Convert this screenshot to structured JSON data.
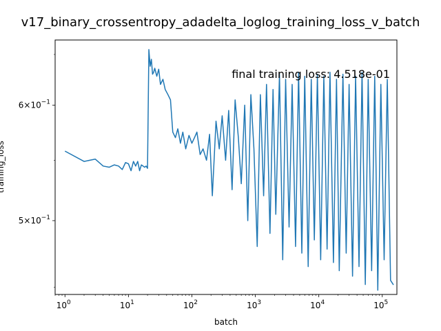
{
  "chart_data": {
    "type": "line",
    "title": "v17_binary_crossentropy_adadelta_loglog_training_loss_v_batch",
    "xlabel": "batch",
    "ylabel": "training_loss",
    "xscale": "log",
    "yscale": "log",
    "xlim": [
      0.7,
      170000
    ],
    "ylim": [
      0.445,
      0.665
    ],
    "xticks": [
      {
        "value": 1,
        "base": "10",
        "exp": "0"
      },
      {
        "value": 10,
        "base": "10",
        "exp": "1"
      },
      {
        "value": 100,
        "base": "10",
        "exp": "2"
      },
      {
        "value": 1000,
        "base": "10",
        "exp": "3"
      },
      {
        "value": 10000,
        "base": "10",
        "exp": "4"
      },
      {
        "value": 100000,
        "base": "10",
        "exp": "5"
      }
    ],
    "yticks": [
      {
        "value": 0.5,
        "mant": "5",
        "base": "10",
        "exp": "−1"
      },
      {
        "value": 0.6,
        "mant": "6",
        "base": "10",
        "exp": "−1"
      }
    ],
    "annotation": "final training loss: 4.518e-01",
    "color": "#1f77b4",
    "grid": false,
    "series": [
      {
        "x": [
          1,
          2,
          3,
          4,
          5,
          6,
          7,
          8,
          9,
          10,
          11,
          12,
          13,
          14,
          15,
          16,
          17,
          18,
          19,
          20,
          21,
          22,
          23,
          24,
          25,
          26,
          28,
          30,
          32,
          35,
          38,
          42,
          46,
          50,
          55,
          60,
          66,
          72,
          80,
          90,
          100,
          110,
          120,
          135,
          150,
          170,
          190,
          210,
          240,
          270,
          300,
          340,
          380,
          430,
          480,
          540,
          600,
          680,
          760,
          850,
          950,
          1070,
          1200,
          1350,
          1500,
          1700,
          1900,
          2100,
          2400,
          2700,
          3000,
          3400,
          3800,
          4300,
          4800,
          5400,
          6000,
          6800,
          7600,
          8500,
          9500,
          10700,
          12000,
          13500,
          15000,
          17000,
          19000,
          21000,
          24000,
          27000,
          30000,
          34000,
          38000,
          43000,
          48000,
          54000,
          60000,
          68000,
          76000,
          85000,
          95000,
          107000,
          120000,
          135000,
          150000
        ],
        "y": [
          0.558,
          0.549,
          0.551,
          0.545,
          0.544,
          0.546,
          0.545,
          0.542,
          0.548,
          0.547,
          0.541,
          0.549,
          0.545,
          0.549,
          0.541,
          0.546,
          0.545,
          0.544,
          0.545,
          0.543,
          0.655,
          0.638,
          0.645,
          0.63,
          0.632,
          0.636,
          0.628,
          0.635,
          0.62,
          0.625,
          0.615,
          0.61,
          0.605,
          0.575,
          0.57,
          0.578,
          0.565,
          0.575,
          0.56,
          0.572,
          0.565,
          0.57,
          0.575,
          0.555,
          0.56,
          0.55,
          0.573,
          0.52,
          0.585,
          0.56,
          0.59,
          0.55,
          0.595,
          0.525,
          0.605,
          0.57,
          0.53,
          0.6,
          0.5,
          0.61,
          0.56,
          0.48,
          0.61,
          0.52,
          0.62,
          0.49,
          0.615,
          0.505,
          0.63,
          0.47,
          0.625,
          0.495,
          0.62,
          0.48,
          0.632,
          0.475,
          0.628,
          0.465,
          0.625,
          0.485,
          0.63,
          0.47,
          0.628,
          0.478,
          0.632,
          0.468,
          0.625,
          0.462,
          0.63,
          0.475,
          0.62,
          0.458,
          0.628,
          0.465,
          0.632,
          0.452,
          0.625,
          0.462,
          0.628,
          0.448,
          0.62,
          0.47,
          0.625,
          0.455,
          0.4518
        ]
      }
    ]
  }
}
